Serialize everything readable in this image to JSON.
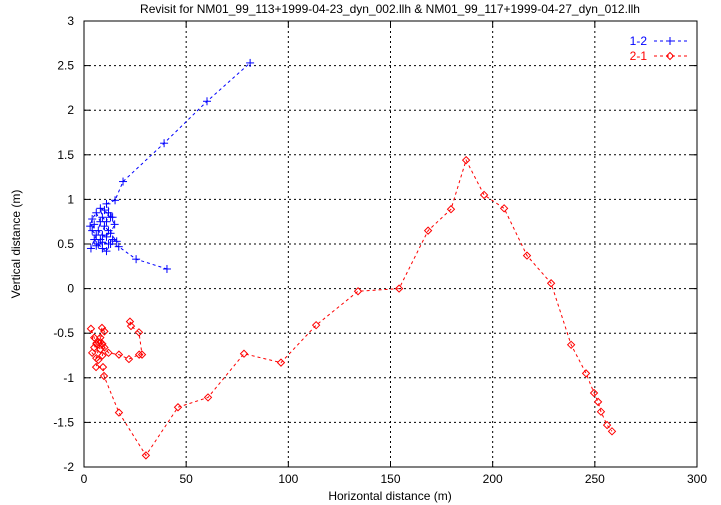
{
  "chart_data": {
    "type": "line",
    "title": "Revisit for NM01_99_113+1999-04-23_dyn_002.llh & NM01_99_117+1999-04-27_dyn_012.llh",
    "xlabel": "Horizontal distance (m)",
    "ylabel": "Vertical distance (m)",
    "xlim": [
      0,
      300
    ],
    "ylim": [
      -2,
      3
    ],
    "xticks": [
      "0",
      "50",
      "100",
      "150",
      "200",
      "250",
      "300"
    ],
    "yticks": [
      "-2",
      "-1.5",
      "-1",
      "-0.5",
      "0",
      "0.5",
      "1",
      "1.5",
      "2",
      "2.5",
      "3"
    ],
    "grid": true,
    "legend_position": "top-right",
    "series": [
      {
        "name": "1-2",
        "color": "#0000ff",
        "marker": "plus",
        "points": [
          [
            40.6,
            0.22
          ],
          [
            25.5,
            0.33
          ],
          [
            17,
            0.47
          ],
          [
            13,
            0.5
          ],
          [
            11,
            0.42
          ],
          [
            9,
            0.45
          ],
          [
            7,
            0.5
          ],
          [
            5,
            0.55
          ],
          [
            3.4,
            0.45
          ],
          [
            6,
            0.6
          ],
          [
            4,
            0.65
          ],
          [
            5,
            0.72
          ],
          [
            3,
            0.7
          ],
          [
            4,
            0.78
          ],
          [
            6,
            0.85
          ],
          [
            8,
            0.75
          ],
          [
            7,
            0.65
          ],
          [
            9,
            0.6
          ],
          [
            11,
            0.58
          ],
          [
            12,
            0.65
          ],
          [
            10,
            0.7
          ],
          [
            8,
            0.55
          ],
          [
            6,
            0.48
          ],
          [
            9,
            0.52
          ],
          [
            12,
            0.5
          ],
          [
            14,
            0.55
          ],
          [
            16,
            0.53
          ],
          [
            13,
            0.62
          ],
          [
            15,
            0.72
          ],
          [
            13,
            0.8
          ],
          [
            10,
            0.88
          ],
          [
            8,
            0.9
          ],
          [
            9,
            0.8
          ],
          [
            11,
            0.75
          ],
          [
            12,
            0.85
          ],
          [
            14,
            0.8
          ],
          [
            11,
            0.95
          ],
          [
            15.2,
            0.99
          ],
          [
            19.1,
            1.2
          ],
          [
            39.2,
            1.63
          ],
          [
            60.2,
            2.1
          ],
          [
            81.3,
            2.53
          ]
        ]
      },
      {
        "name": "2-1",
        "color": "#ff0000",
        "marker": "diamond",
        "points": [
          [
            22.5,
            -0.37
          ],
          [
            23,
            -0.42
          ],
          [
            26.9,
            -0.49
          ],
          [
            28.4,
            -0.74
          ],
          [
            27,
            -0.74
          ],
          [
            22,
            -0.79
          ],
          [
            17.1,
            -0.74
          ],
          [
            12,
            -0.72
          ],
          [
            9,
            -0.62
          ],
          [
            8,
            -0.55
          ],
          [
            10,
            -0.48
          ],
          [
            8.8,
            -0.44
          ],
          [
            7,
            -0.6
          ],
          [
            5,
            -0.66
          ],
          [
            3.4,
            -0.45
          ],
          [
            5,
            -0.55
          ],
          [
            6,
            -0.62
          ],
          [
            8,
            -0.68
          ],
          [
            4,
            -0.72
          ],
          [
            6,
            -0.78
          ],
          [
            8,
            -0.6
          ],
          [
            10,
            -0.66
          ],
          [
            9,
            -0.75
          ],
          [
            7,
            -0.8
          ],
          [
            5.9,
            -0.88
          ],
          [
            9.3,
            -0.88
          ],
          [
            9.8,
            -0.98
          ],
          [
            17.1,
            -1.39
          ],
          [
            30.3,
            -1.87
          ],
          [
            46,
            -1.33
          ],
          [
            60.7,
            -1.22
          ],
          [
            78.3,
            -0.73
          ],
          [
            96.4,
            -0.83
          ],
          [
            113.6,
            -0.41
          ],
          [
            134.1,
            -0.03
          ],
          [
            154.2,
            0.0
          ],
          [
            168.4,
            0.65
          ],
          [
            179.6,
            0.89
          ],
          [
            187,
            1.44
          ],
          [
            195.8,
            1.05
          ],
          [
            205.6,
            0.9
          ],
          [
            216.8,
            0.37
          ],
          [
            228.6,
            0.06
          ],
          [
            238.4,
            -0.63
          ],
          [
            245.7,
            -0.95
          ],
          [
            249.6,
            -1.17
          ],
          [
            251.6,
            -1.27
          ],
          [
            253,
            -1.38
          ],
          [
            256,
            -1.53
          ],
          [
            258.4,
            -1.6
          ]
        ]
      }
    ]
  }
}
